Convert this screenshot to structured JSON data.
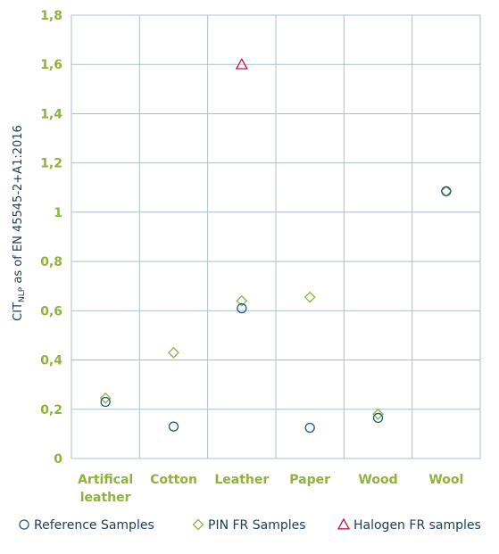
{
  "chart_data": {
    "type": "scatter",
    "categories": [
      "Artifical leather",
      "Cotton",
      "Leather",
      "Paper",
      "Wood",
      "Wool"
    ],
    "ylabel_main": "CIT",
    "ylabel_sub": "NLP",
    "ylabel_rest": " as of EN 45545-2+A1:2016",
    "ylim": [
      0,
      1.8
    ],
    "yticks": [
      0,
      0.2,
      0.4,
      0.6,
      0.8,
      1,
      1.2,
      1.4,
      1.6,
      1.8
    ],
    "ytick_labels": [
      "0",
      "0,2",
      "0,4",
      "0,6",
      "0,8",
      "1",
      "1,2",
      "1,4",
      "1,6",
      "1,8"
    ],
    "grid": true,
    "legend_position": "bottom",
    "series": [
      {
        "name": "Reference Samples",
        "marker": "circle",
        "color": "#1f5a8a",
        "values": [
          0.23,
          0.13,
          0.61,
          0.125,
          0.165,
          1.085
        ]
      },
      {
        "name": "PIN FR Samples",
        "marker": "diamond",
        "color": "#8db33a",
        "values": [
          0.245,
          0.43,
          0.64,
          0.655,
          0.18,
          1.085
        ]
      },
      {
        "name": "Halogen FR samples",
        "marker": "triangle",
        "color": "#c0143c",
        "values": [
          null,
          null,
          1.6,
          null,
          null,
          null
        ]
      }
    ]
  }
}
